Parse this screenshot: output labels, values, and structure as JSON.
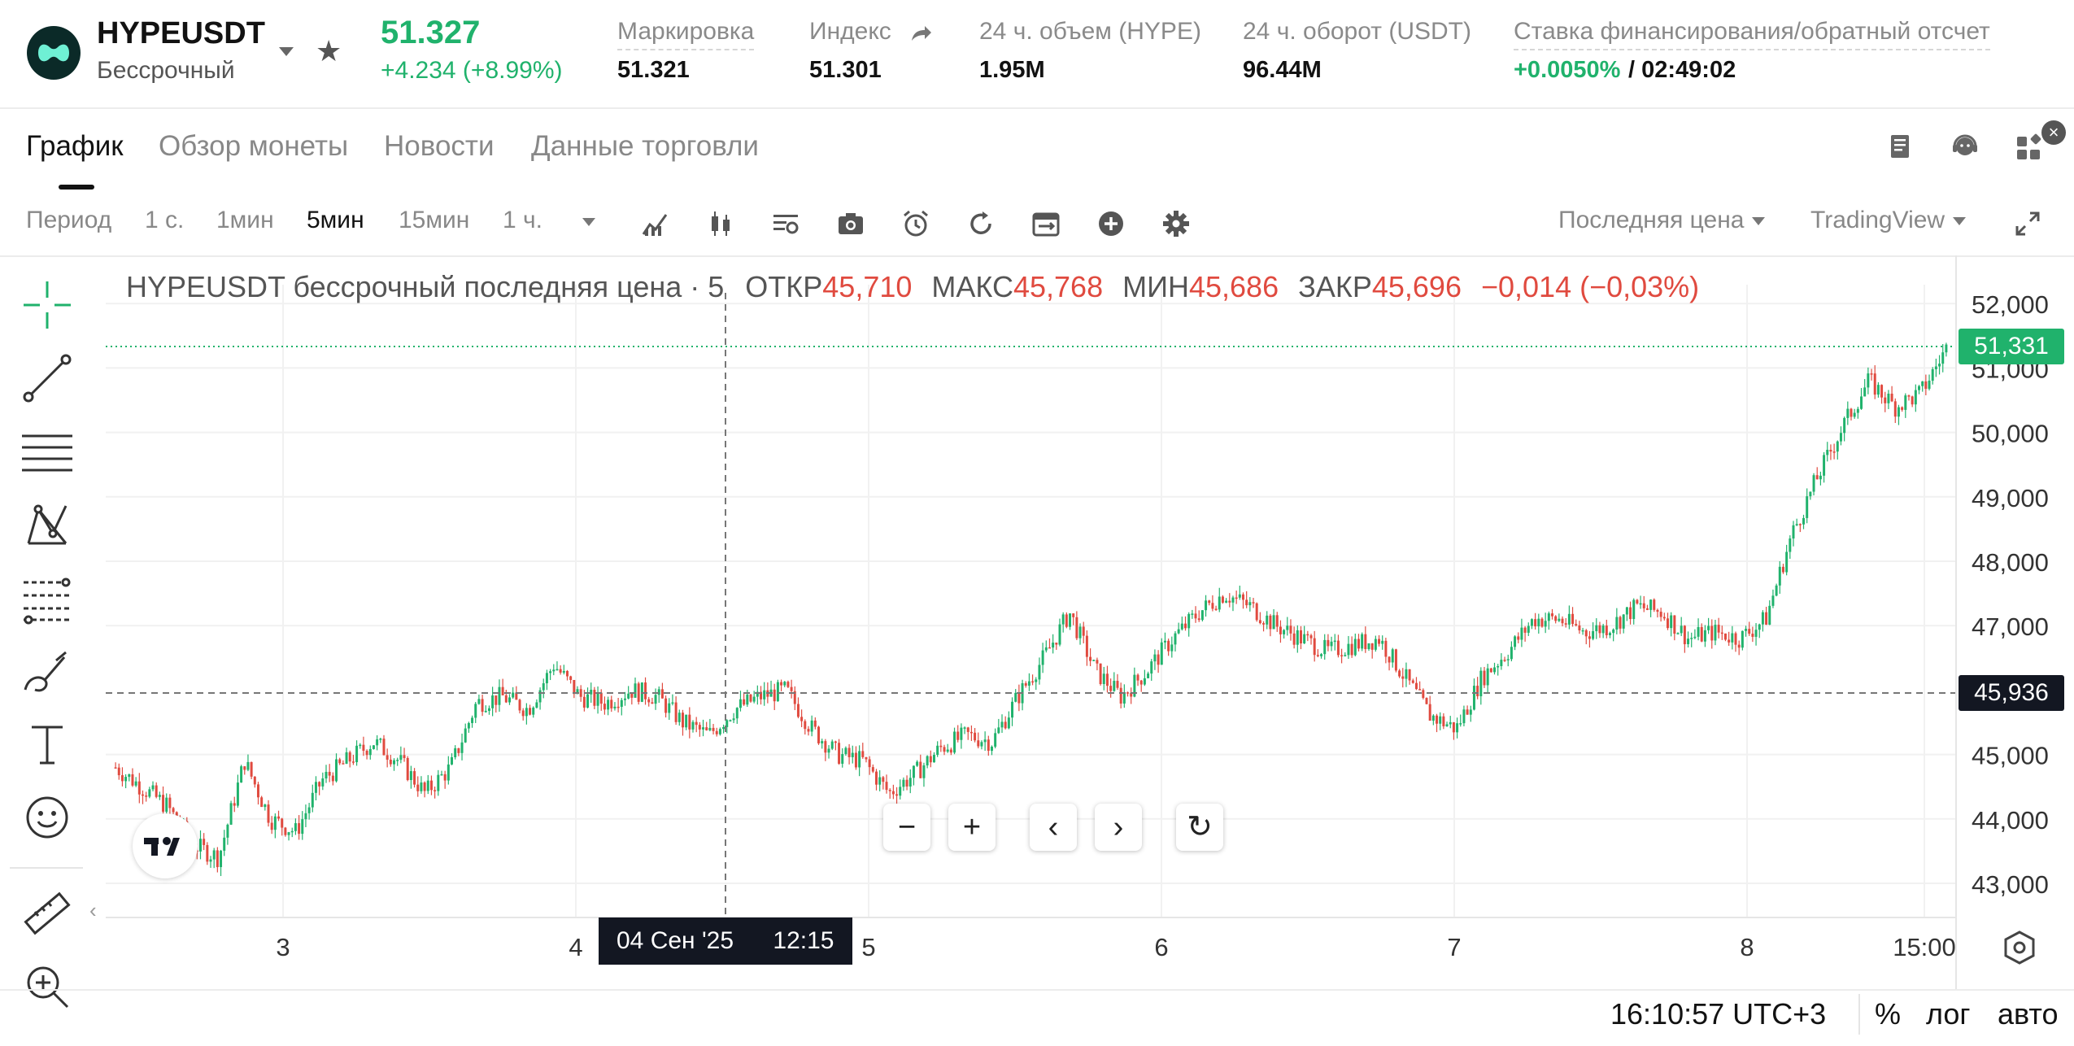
{
  "header": {
    "symbol": "HYPEUSDT",
    "contract_type": "Бессрочный",
    "last_price": "51.327",
    "change": "+4.234  (+8.99%)",
    "stats": [
      {
        "label": "Маркировка",
        "value": "51.321"
      },
      {
        "label": "Индекс",
        "value": "51.301"
      },
      {
        "label": "24 ч. объем (HYPE)",
        "value": "1.95M"
      },
      {
        "label": "24 ч. оборот (USDT)",
        "value": "96.44M"
      },
      {
        "label": "Ставка финансирования/обратный отсчет",
        "value_rate": "+0.0050%",
        "value_countdown": "/ 02:49:02"
      }
    ],
    "colors": {
      "up": "#20b26c",
      "down": "#e04a3f"
    }
  },
  "tabs": [
    {
      "label": "График",
      "active": true
    },
    {
      "label": "Обзор монеты",
      "active": false
    },
    {
      "label": "Новости",
      "active": false
    },
    {
      "label": "Данные торговли",
      "active": false
    }
  ],
  "toolbar": {
    "period_label": "Период",
    "intervals": [
      {
        "label": "1 с.",
        "active": false
      },
      {
        "label": "1мин",
        "active": false
      },
      {
        "label": "5мин",
        "active": true
      },
      {
        "label": "15мин",
        "active": false
      },
      {
        "label": "1 ч.",
        "active": false
      }
    ],
    "price_type": "Последняя цена",
    "chart_provider": "TradingView",
    "icons": [
      "indicators-icon",
      "candle-type-icon",
      "template-icon",
      "camera-icon",
      "alarm-icon",
      "refresh-icon",
      "compare-icon",
      "add-icon",
      "settings-icon"
    ]
  },
  "chart_data": {
    "type": "candlestick",
    "title": "HYPEUSDT бессрочный последняя цена · 5",
    "ohlc_legend": {
      "open_label": "ОТКР",
      "open": "45,710",
      "high_label": "МАКС",
      "high": "45,768",
      "low_label": "МИН",
      "low": "45,686",
      "close_label": "ЗАКР",
      "close": "45,696",
      "change": "−0,014 (−0,03%)"
    },
    "y_ticks": [
      "52,000",
      "51,000",
      "50,000",
      "49,000",
      "48,000",
      "47,000",
      "45,000",
      "44,000",
      "43,000"
    ],
    "y_range": [
      42500,
      52500
    ],
    "x_ticks": [
      "3",
      "4",
      "5",
      "6",
      "7",
      "8",
      "15:00"
    ],
    "last_price_label": "51,331",
    "crosshair_price_label": "45,936",
    "crosshair_time": {
      "date": "04 Сен '25",
      "time": "12:15"
    },
    "grid": true,
    "series": [
      {
        "values": [
          44800,
          44500,
          44200,
          43600,
          43400,
          44900,
          44000,
          43800,
          44600,
          44900,
          45200,
          44900,
          44400,
          44800,
          45800,
          45900,
          45700,
          46400,
          45900,
          45800,
          46000,
          45900,
          45500,
          45300,
          45700,
          45900,
          46000,
          45400,
          45000,
          44900,
          44400,
          44700,
          45100,
          45300,
          45200,
          45900,
          46500,
          47200,
          46300,
          45900,
          46300,
          46800,
          47200,
          47500,
          47300,
          47000,
          46800,
          46600,
          46700,
          46800,
          46200,
          45600,
          45400,
          46200,
          46600,
          47100,
          47100,
          46900,
          47000,
          47300,
          47200,
          46800,
          46900,
          46800,
          47100,
          48400,
          49300,
          50100,
          50800,
          50400,
          50600,
          51300
        ]
      }
    ]
  },
  "footer": {
    "clock": "16:10:57 UTC+3",
    "percent": "%",
    "log": "лог",
    "auto": "авто"
  }
}
